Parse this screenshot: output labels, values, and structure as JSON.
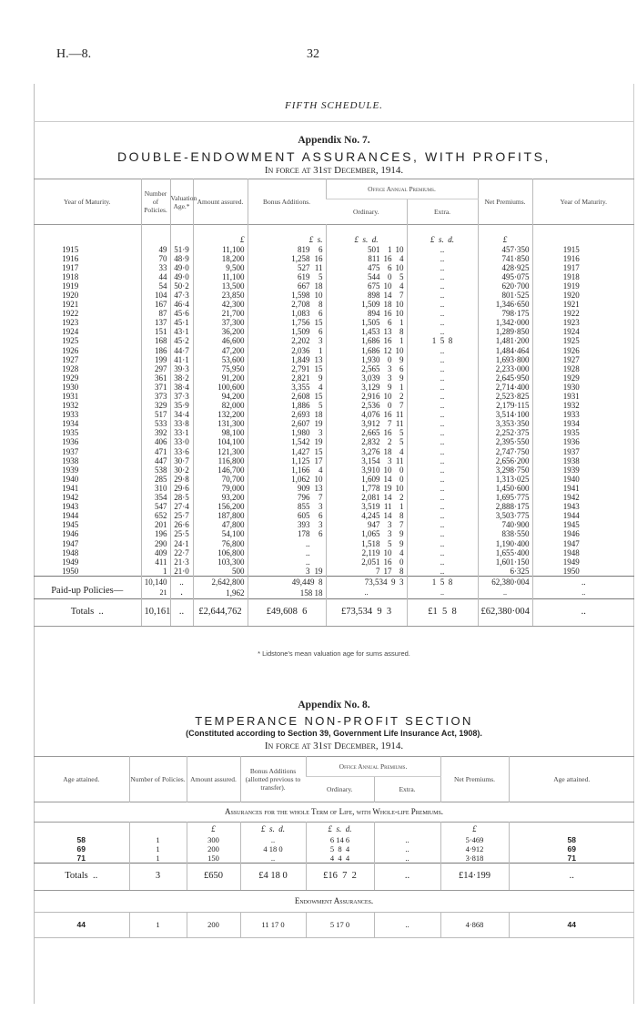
{
  "header": {
    "ref": "H.—8.",
    "page": "32"
  },
  "schedule_title": "FIFTH SCHEDULE.",
  "app7": {
    "label": "Appendix No. 7.",
    "title": "DOUBLE-ENDOWMENT ASSURANCES, WITH PROFITS,",
    "subtitle": "In force at 31st December, 1914.",
    "columns": {
      "year": "Year of Maturity.",
      "number": "Number of Policies.",
      "age": "Valuation Age.*",
      "amount": "Amount assured.",
      "bonus": "Bonus Additions.",
      "office": "Office Annual Premiums.",
      "ordinary": "Ordinary.",
      "extra": "Extra.",
      "net": "Net Premiums.",
      "year2": "Year of Maturity."
    },
    "units": {
      "amount": "£",
      "bonus": "£  s.",
      "ordinary": "£  s.  d.",
      "extra": "£  s.  d.",
      "net": "£"
    },
    "rows": [
      [
        "1915",
        "49",
        "51·9",
        "11,100",
        "819",
        "6",
        "501",
        "1",
        "10",
        "..",
        "457·350"
      ],
      [
        "1916",
        "70",
        "48·9",
        "18,200",
        "1,258",
        "16",
        "811",
        "16",
        "4",
        "..",
        "741·850"
      ],
      [
        "1917",
        "33",
        "49·0",
        "9,500",
        "527",
        "11",
        "475",
        "6",
        "10",
        "..",
        "428·925"
      ],
      [
        "1918",
        "44",
        "49·0",
        "11,100",
        "619",
        "5",
        "544",
        "0",
        "5",
        "..",
        "495·075"
      ],
      [
        "1919",
        "54",
        "50·2",
        "13,500",
        "667",
        "18",
        "675",
        "10",
        "4",
        "..",
        "620·700"
      ],
      [
        "1920",
        "104",
        "47·3",
        "23,850",
        "1,598",
        "10",
        "898",
        "14",
        "7",
        "..",
        "801·525"
      ],
      [
        "1921",
        "167",
        "46·4",
        "42,300",
        "2,708",
        "8",
        "1,509",
        "18",
        "10",
        "..",
        "1,346·650"
      ],
      [
        "1922",
        "87",
        "45·6",
        "21,700",
        "1,083",
        "6",
        "894",
        "16",
        "10",
        "..",
        "798·175"
      ],
      [
        "1923",
        "137",
        "45·1",
        "37,300",
        "1,756",
        "15",
        "1,505",
        "6",
        "1",
        "..",
        "1,342·000"
      ],
      [
        "1924",
        "151",
        "43·1",
        "36,200",
        "1,509",
        "6",
        "1,453",
        "13",
        "8",
        "..",
        "1,289·850"
      ],
      [
        "1925",
        "168",
        "45·2",
        "46,600",
        "2,202",
        "3",
        "1,686",
        "16",
        "1",
        "1  5  8",
        "1,481·200"
      ],
      [
        "1926",
        "186",
        "44·7",
        "47,200",
        "2,036",
        "1",
        "1,686",
        "12",
        "10",
        "..",
        "1,484·464"
      ],
      [
        "1927",
        "199",
        "41·1",
        "53,600",
        "1,849",
        "13",
        "1,930",
        "0",
        "9",
        "..",
        "1,693·800"
      ],
      [
        "1928",
        "297",
        "39·3",
        "75,950",
        "2,791",
        "15",
        "2,565",
        "3",
        "6",
        "..",
        "2,233·000"
      ],
      [
        "1929",
        "361",
        "38·2",
        "91,200",
        "2,821",
        "9",
        "3,039",
        "3",
        "9",
        "..",
        "2,645·950"
      ],
      [
        "1930",
        "371",
        "38·4",
        "100,600",
        "3,355",
        "4",
        "3,129",
        "9",
        "1",
        "..",
        "2,714·400"
      ],
      [
        "1931",
        "373",
        "37·3",
        "94,200",
        "2,608",
        "15",
        "2,916",
        "10",
        "2",
        "..",
        "2,523·825"
      ],
      [
        "1932",
        "329",
        "35·9",
        "82,000",
        "1,886",
        "5",
        "2,536",
        "0",
        "7",
        "..",
        "2,179·115"
      ],
      [
        "1933",
        "517",
        "34·4",
        "132,200",
        "2,693",
        "18",
        "4,076",
        "16",
        "11",
        "..",
        "3,514·100"
      ],
      [
        "1934",
        "533",
        "33·8",
        "131,300",
        "2,607",
        "19",
        "3,912",
        "7",
        "11",
        "..",
        "3,353·350"
      ],
      [
        "1935",
        "392",
        "33·1",
        "98,100",
        "1,980",
        "3",
        "2,665",
        "16",
        "5",
        "..",
        "2,252·375"
      ],
      [
        "1936",
        "406",
        "33·0",
        "104,100",
        "1,542",
        "19",
        "2,832",
        "2",
        "5",
        "..",
        "2,395·550"
      ],
      [
        "1937",
        "471",
        "33·6",
        "121,300",
        "1,427",
        "15",
        "3,276",
        "18",
        "4",
        "..",
        "2,747·750"
      ],
      [
        "1938",
        "447",
        "30·7",
        "116,800",
        "1,125",
        "17",
        "3,154",
        "3",
        "11",
        "..",
        "2,656·200"
      ],
      [
        "1939",
        "538",
        "30·2",
        "146,700",
        "1,166",
        "4",
        "3,910",
        "10",
        "0",
        "..",
        "3,298·750"
      ],
      [
        "1940",
        "285",
        "29·8",
        "70,700",
        "1,062",
        "10",
        "1,609",
        "14",
        "0",
        "..",
        "1,313·025"
      ],
      [
        "1941",
        "310",
        "29·6",
        "79,000",
        "909",
        "13",
        "1,778",
        "19",
        "10",
        "..",
        "1,450·600"
      ],
      [
        "1942",
        "354",
        "28·5",
        "93,200",
        "796",
        "7",
        "2,081",
        "14",
        "2",
        "..",
        "1,695·775"
      ],
      [
        "1943",
        "547",
        "27·4",
        "156,200",
        "855",
        "3",
        "3,519",
        "11",
        "1",
        "..",
        "2,888·175"
      ],
      [
        "1944",
        "652",
        "25·7",
        "187,800",
        "605",
        "6",
        "4,245",
        "14",
        "8",
        "..",
        "3,503·775"
      ],
      [
        "1945",
        "201",
        "26·6",
        "47,800",
        "393",
        "3",
        "947",
        "3",
        "7",
        "..",
        "740·900"
      ],
      [
        "1946",
        "196",
        "25·5",
        "54,100",
        "178",
        "6",
        "1,065",
        "3",
        "9",
        "..",
        "838·550"
      ],
      [
        "1947",
        "290",
        "24·1",
        "76,800",
        "..",
        "",
        "1,518",
        "5",
        "9",
        "..",
        "1,190·400"
      ],
      [
        "1948",
        "409",
        "22·7",
        "106,800",
        "..",
        "",
        "2,119",
        "10",
        "4",
        "..",
        "1,655·400"
      ],
      [
        "1949",
        "411",
        "21·3",
        "103,300",
        "..",
        "",
        "2,051",
        "16",
        "0",
        "..",
        "1,601·150"
      ],
      [
        "1950",
        "1",
        "21·0",
        "500",
        "3",
        "19",
        "7",
        "17",
        "8",
        "..",
        "6·325"
      ]
    ],
    "subtotal": {
      "number": "10,140",
      "age": "..",
      "amount": "2,642,800",
      "bonus": "49,449  8",
      "ordinary": "73,534  9  3",
      "extra": "1  5  8",
      "net": "62,380·004",
      "year2": ".."
    },
    "paidup": {
      "label": "Paid-up Policies—",
      "number": "21",
      "age": ".",
      "amount": "1,962",
      "bonus": "158 18",
      "ordinary": "..",
      "extra": "..",
      "net": "..",
      "year2": ".."
    },
    "totals": {
      "label": "Totals  ..",
      "number": "10,161",
      "age": "..",
      "amount": "£2,644,762",
      "bonus": "£49,608  6",
      "ordinary": "£73,534  9  3",
      "extra": "£1  5  8",
      "net": "£62,380·004",
      "year2": ".."
    },
    "footnote": "* Lidstone's mean valuation age for sums assured."
  },
  "app8": {
    "label": "Appendix No. 8.",
    "title": "TEMPERANCE NON-PROFIT SECTION",
    "constituted": "(Constituted according to Section 39, Government Life Insurance Act, 1908).",
    "subtitle": "In force at 31st December, 1914.",
    "columns": {
      "age": "Age attained.",
      "number": "Number of Policies.",
      "amount": "Amount assured.",
      "bonus": "Bonus Additions (allotted previous to transfer).",
      "office": "Office Annual Premiums.",
      "ordinary": "Ordinary.",
      "extra": "Extra.",
      "net": "Net Premiums.",
      "age2": "Age attained."
    },
    "section1": "Assurances for the whole Term of Life, with Whole-life Premiums.",
    "units": {
      "amount": "£",
      "bonus": "£  s.  d.",
      "ordinary": "£  s.  d.",
      "net": "£"
    },
    "rows": [
      [
        "58",
        "1",
        "300",
        "..",
        "6 14 6",
        "..",
        "5·469",
        "58"
      ],
      [
        "69",
        "1",
        "200",
        "4 18 0",
        "5  8  4",
        "..",
        "4·912",
        "69"
      ],
      [
        "71",
        "1",
        "150",
        "..",
        "4  4  4",
        "..",
        "3·818",
        "71"
      ]
    ],
    "totals": [
      "Totals  ..",
      "3",
      "£650",
      "£4 18 0",
      "£16  7  2",
      "..",
      "£14·199",
      ".."
    ],
    "section2": "Endowment Assurances.",
    "endow_rows": [
      [
        "44",
        "1",
        "200",
        "11 17 0",
        "5 17 0",
        "..",
        "4·868",
        "44"
      ]
    ]
  }
}
